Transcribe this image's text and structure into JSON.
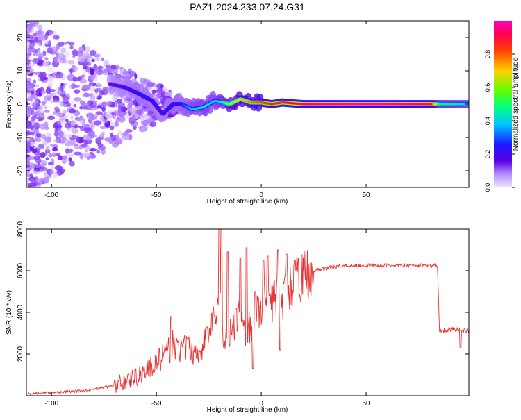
{
  "title": "PAZ1.2024.233.07.24.G31",
  "colors": {
    "snr_line": "#e53232",
    "frame": "#000000",
    "background": "#ffffff",
    "colormap": [
      "#f0e6ff",
      "#9a5bff",
      "#5a00e0",
      "#1a1aff",
      "#00c8ff",
      "#00ff80",
      "#80ff00",
      "#ffd000",
      "#ff4000",
      "#ff0040",
      "#ff00c0"
    ]
  },
  "chart_data": [
    {
      "type": "heatmap",
      "title": "PAZ1.2024.233.07.24.G31",
      "xlabel": "Height of straight line (km)",
      "ylabel": "Frequency (Hz)",
      "xlim": [
        -112,
        99
      ],
      "ylim": [
        -25,
        25
      ],
      "x_ticks": [
        -100,
        -50,
        0,
        50
      ],
      "x_tick_labels": [
        "-100",
        "-50",
        "0",
        "50"
      ],
      "y_ticks": [
        -20,
        -10,
        0,
        10,
        20
      ],
      "y_tick_labels": [
        "-20",
        "-10",
        "0",
        "10",
        "20"
      ],
      "colorbar": {
        "label": "Normalized spectral amplitude",
        "range": [
          0,
          1
        ],
        "ticks": [
          0.0,
          0.2,
          0.4,
          0.6,
          0.8
        ],
        "tick_labels": [
          "0.0",
          "0.2",
          "0.4",
          "0.6",
          "0.8"
        ]
      },
      "ridge": [
        {
          "x": -72,
          "f": 6,
          "amp": 0.22
        },
        {
          "x": -65,
          "f": 5,
          "amp": 0.25
        },
        {
          "x": -58,
          "f": 3,
          "amp": 0.3
        },
        {
          "x": -52,
          "f": 1,
          "amp": 0.28
        },
        {
          "x": -47,
          "f": -3,
          "amp": 0.25
        },
        {
          "x": -42,
          "f": 0,
          "amp": 0.3
        },
        {
          "x": -38,
          "f": 0,
          "amp": 0.3
        },
        {
          "x": -33,
          "f": -1.5,
          "amp": 0.4
        },
        {
          "x": -28,
          "f": -1,
          "amp": 0.45
        },
        {
          "x": -22,
          "f": 1,
          "amp": 0.4
        },
        {
          "x": -15,
          "f": 0,
          "amp": 0.6
        },
        {
          "x": -10,
          "f": 1.5,
          "amp": 0.7
        },
        {
          "x": -5,
          "f": 0.5,
          "amp": 0.75
        },
        {
          "x": 0,
          "f": 0.5,
          "amp": 0.8
        },
        {
          "x": 5,
          "f": 0,
          "amp": 0.85
        },
        {
          "x": 10,
          "f": 0.5,
          "amp": 0.85
        },
        {
          "x": 20,
          "f": 0,
          "amp": 0.95
        },
        {
          "x": 40,
          "f": 0,
          "amp": 1.0
        },
        {
          "x": 60,
          "f": 0,
          "amp": 1.0
        },
        {
          "x": 80,
          "f": 0,
          "amp": 0.95
        },
        {
          "x": 85,
          "f": 0,
          "amp": 0.5
        },
        {
          "x": 99,
          "f": 0,
          "amp": 0.45
        }
      ]
    },
    {
      "type": "line",
      "xlabel": "Height of straight line (km)",
      "ylabel": "SNR (10 * v/v)",
      "xlim": [
        -112,
        99
      ],
      "ylim": [
        0,
        8000
      ],
      "x_ticks": [
        -100,
        -50,
        0,
        50
      ],
      "x_tick_labels": [
        "-100",
        "-50",
        "0",
        "50"
      ],
      "y_ticks": [
        2000,
        4000,
        6000,
        8000
      ],
      "y_tick_labels": [
        "2000",
        "4000",
        "6000",
        "8000"
      ],
      "series": [
        {
          "x": [
            -112,
            -100,
            -90,
            -80,
            -70,
            -60,
            -55,
            -50,
            -45,
            -42,
            -40,
            -35,
            -30,
            -25,
            -22,
            -20,
            -18,
            -15,
            -10,
            -8,
            -5,
            -2,
            0,
            5,
            8,
            10,
            12,
            15,
            20,
            25,
            30,
            35,
            40,
            50,
            60,
            70,
            80,
            84,
            85,
            86,
            90,
            95,
            99
          ],
          "y": [
            100,
            150,
            200,
            300,
            500,
            900,
            1200,
            1600,
            2000,
            2500,
            2200,
            2300,
            2000,
            3000,
            3800,
            4800,
            2600,
            3200,
            3800,
            3000,
            3400,
            4000,
            4200,
            4500,
            4800,
            4500,
            5000,
            5400,
            5800,
            6000,
            6100,
            6200,
            6250,
            6250,
            6250,
            6250,
            6250,
            6250,
            3200,
            3100,
            3200,
            3200,
            3100
          ],
          "spikes": [
            {
              "x": -43,
              "y": 3800
            },
            {
              "x": -35,
              "y": 2700
            },
            {
              "x": -26,
              "y": 3300
            },
            {
              "x": -20,
              "y": 8000
            },
            {
              "x": -19,
              "y": 8000
            },
            {
              "x": -16,
              "y": 6900
            },
            {
              "x": -12,
              "y": 4200
            },
            {
              "x": -10,
              "y": 6600
            },
            {
              "x": -7,
              "y": 7100
            },
            {
              "x": -3,
              "y": 5000
            },
            {
              "x": 1,
              "y": 6500
            },
            {
              "x": 3,
              "y": 6700
            },
            {
              "x": 8,
              "y": 7000
            },
            {
              "x": 12,
              "y": 6800
            },
            {
              "x": 16,
              "y": 6500
            }
          ],
          "dips": [
            {
              "x": -4,
              "y": 1300
            },
            {
              "x": 9,
              "y": 2200
            },
            {
              "x": 95,
              "y": 2300
            }
          ]
        }
      ]
    }
  ]
}
